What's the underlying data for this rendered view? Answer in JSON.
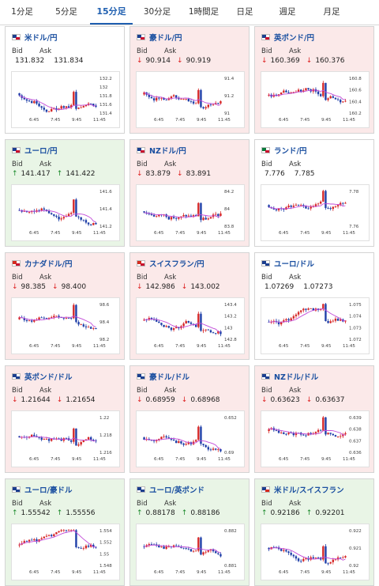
{
  "tabs": [
    {
      "label": "1分足",
      "active": false
    },
    {
      "label": "5分足",
      "active": false
    },
    {
      "label": "15分足",
      "active": true
    },
    {
      "label": "30分足",
      "active": false
    },
    {
      "label": "1時間足",
      "active": false
    },
    {
      "label": "日足",
      "active": false
    },
    {
      "label": "週足",
      "active": false
    },
    {
      "label": "月足",
      "active": false
    }
  ],
  "labels": {
    "bid": "Bid",
    "ask": "Ask"
  },
  "colors": {
    "up_bg": "#e9f5e6",
    "down_bg": "#fbe9e9",
    "candle_up": "#d62828",
    "candle_down": "#1f3fa8",
    "ma": "#c24ad8"
  },
  "x_ticks": [
    "6:45",
    "7:45",
    "9:45",
    "11:45"
  ],
  "cards": [
    {
      "name": "米ドル/円",
      "trend": "flat",
      "bid": "131.832",
      "ask": "131.834",
      "bid_arrow": "",
      "ask_arrow": "",
      "flags": [
        "#1c3f8f",
        "#c8102e"
      ],
      "y_ticks": [
        "132.2",
        "132",
        "131.8",
        "131.6",
        "131.4"
      ]
    },
    {
      "name": "豪ドル/円",
      "trend": "down",
      "bid": "90.914",
      "ask": "90.919",
      "bid_arrow": "↓",
      "ask_arrow": "↓",
      "flags": [
        "#1c3f8f",
        "#c8102e"
      ],
      "y_ticks": [
        "91.4",
        "91.2",
        "91"
      ]
    },
    {
      "name": "英ポンド/円",
      "trend": "down",
      "bid": "160.369",
      "ask": "160.376",
      "bid_arrow": "↓",
      "ask_arrow": "↓",
      "flags": [
        "#1c3f8f",
        "#c8102e"
      ],
      "y_ticks": [
        "160.8",
        "160.6",
        "160.4",
        "160.2"
      ]
    },
    {
      "name": "ユーロ/円",
      "trend": "up",
      "bid": "141.417",
      "ask": "141.422",
      "bid_arrow": "↑",
      "ask_arrow": "↑",
      "flags": [
        "#1c3f8f",
        "#c8102e"
      ],
      "y_ticks": [
        "141.6",
        "141.4",
        "141.2"
      ]
    },
    {
      "name": "NZドル/円",
      "trend": "down",
      "bid": "83.879",
      "ask": "83.891",
      "bid_arrow": "↓",
      "ask_arrow": "↓",
      "flags": [
        "#1c3f8f",
        "#c8102e"
      ],
      "y_ticks": [
        "84.2",
        "84",
        "83.8"
      ]
    },
    {
      "name": "ランド/円",
      "trend": "flat",
      "bid": "7.776",
      "ask": "7.785",
      "bid_arrow": "",
      "ask_arrow": "",
      "flags": [
        "#0a7a3a",
        "#c8102e"
      ],
      "y_ticks": [
        "7.78",
        "7.76"
      ]
    },
    {
      "name": "カナダドル/円",
      "trend": "down",
      "bid": "98.385",
      "ask": "98.400",
      "bid_arrow": "↓",
      "ask_arrow": "↓",
      "flags": [
        "#d52b1e",
        "#c8102e"
      ],
      "y_ticks": [
        "98.6",
        "98.4",
        "98.2"
      ]
    },
    {
      "name": "スイスフラン/円",
      "trend": "down",
      "bid": "142.986",
      "ask": "143.002",
      "bid_arrow": "↓",
      "ask_arrow": "↓",
      "flags": [
        "#d52b1e",
        "#c8102e"
      ],
      "y_ticks": [
        "143.4",
        "143.2",
        "143",
        "142.8"
      ]
    },
    {
      "name": "ユーロ/ドル",
      "trend": "flat",
      "bid": "1.07269",
      "ask": "1.07273",
      "bid_arrow": "",
      "ask_arrow": "",
      "flags": [
        "#1c3f8f",
        "#1c3f8f"
      ],
      "y_ticks": [
        "1.075",
        "1.074",
        "1.073",
        "1.072"
      ]
    },
    {
      "name": "英ポンド/ドル",
      "trend": "down",
      "bid": "1.21644",
      "ask": "1.21654",
      "bid_arrow": "↓",
      "ask_arrow": "↓",
      "flags": [
        "#1c3f8f",
        "#1c3f8f"
      ],
      "y_ticks": [
        "1.22",
        "1.218",
        "1.216"
      ]
    },
    {
      "name": "豪ドル/ドル",
      "trend": "down",
      "bid": "0.68959",
      "ask": "0.68968",
      "bid_arrow": "↓",
      "ask_arrow": "↓",
      "flags": [
        "#1c3f8f",
        "#1c3f8f"
      ],
      "y_ticks": [
        "0.652",
        "0.69"
      ]
    },
    {
      "name": "NZドル/ドル",
      "trend": "down",
      "bid": "0.63623",
      "ask": "0.63637",
      "bid_arrow": "↓",
      "ask_arrow": "↓",
      "flags": [
        "#1c3f8f",
        "#1c3f8f"
      ],
      "y_ticks": [
        "0.639",
        "0.638",
        "0.637",
        "0.636"
      ]
    },
    {
      "name": "ユーロ/豪ドル",
      "trend": "up",
      "bid": "1.55542",
      "ask": "1.55556",
      "bid_arrow": "↑",
      "ask_arrow": "↑",
      "flags": [
        "#1c3f8f",
        "#1c3f8f"
      ],
      "y_ticks": [
        "1.554",
        "1.552",
        "1.55",
        "1.548"
      ]
    },
    {
      "name": "ユーロ/英ポンド",
      "trend": "up",
      "bid": "0.88178",
      "ask": "0.88186",
      "bid_arrow": "↑",
      "ask_arrow": "↑",
      "flags": [
        "#1c3f8f",
        "#1c3f8f"
      ],
      "y_ticks": [
        "0.882",
        "0.881"
      ]
    },
    {
      "name": "米ドル/スイスフラン",
      "trend": "up",
      "bid": "0.92186",
      "ask": "0.92201",
      "bid_arrow": "↑",
      "ask_arrow": "↑",
      "flags": [
        "#1c3f8f",
        "#d52b1e"
      ],
      "y_ticks": [
        "0.922",
        "0.921",
        "0.92"
      ]
    }
  ]
}
